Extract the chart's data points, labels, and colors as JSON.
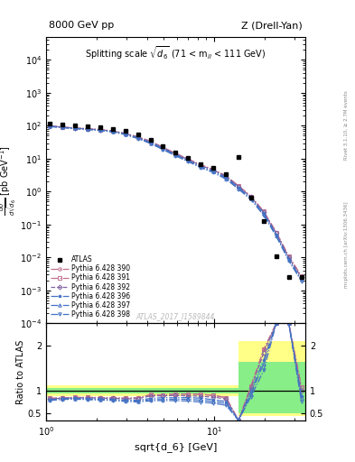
{
  "title_left": "8000 GeV pp",
  "title_right": "Z (Drell-Yan)",
  "panel_title": "Splitting scale $\\sqrt{d_6}$ (71 < m$_{ll}$ < 111 GeV)",
  "ylabel_main": "d$\\sigma$/dsqrt($d_6$) [pb,GeV$^{-1}$]",
  "ylabel_ratio": "Ratio to ATLAS",
  "xlabel": "sqrt{d_6} [GeV]",
  "watermark": "ATLAS_2017_I1589844",
  "right_label": "mcplots.cern.ch [arXiv:1306.3436]",
  "right_label2": "Rivet 3.1.10, ≥ 2.7M events",
  "atlas_x": [
    1.05,
    1.25,
    1.48,
    1.76,
    2.09,
    2.49,
    2.96,
    3.52,
    4.18,
    4.97,
    5.91,
    7.02,
    8.35,
    9.92,
    11.8,
    14.0,
    16.6,
    19.8,
    23.5,
    27.9,
    33.2
  ],
  "atlas_y": [
    120,
    108,
    100,
    95,
    90,
    82,
    70,
    54,
    37,
    24,
    15.5,
    10.5,
    7.0,
    5.2,
    3.5,
    11.0,
    0.65,
    0.13,
    0.011,
    0.0025,
    0.0025
  ],
  "mc_x": [
    1.05,
    1.25,
    1.48,
    1.76,
    2.09,
    2.49,
    2.96,
    3.52,
    4.18,
    4.97,
    5.91,
    7.02,
    8.35,
    9.92,
    11.8,
    14.0,
    16.6,
    19.8,
    23.5,
    27.9,
    33.2
  ],
  "py390_y": [
    100,
    92,
    86,
    82,
    77,
    70,
    59,
    46,
    34,
    22,
    14.5,
    9.8,
    6.5,
    4.7,
    3.0,
    1.5,
    0.72,
    0.25,
    0.058,
    0.011,
    0.0027
  ],
  "py391_y": [
    100,
    92,
    86,
    82,
    77,
    70,
    59,
    46,
    34,
    22,
    14.5,
    9.8,
    6.5,
    4.7,
    3.0,
    1.5,
    0.72,
    0.25,
    0.058,
    0.011,
    0.0027
  ],
  "py392_y": [
    99,
    91,
    85,
    81,
    76,
    69,
    58,
    45,
    33,
    21.5,
    14.0,
    9.4,
    6.2,
    4.5,
    2.9,
    1.45,
    0.69,
    0.24,
    0.055,
    0.01,
    0.0025
  ],
  "py396_y": [
    97,
    90,
    84,
    79,
    74,
    67,
    56,
    43,
    31,
    20.5,
    13.2,
    9.0,
    5.9,
    4.2,
    2.7,
    1.35,
    0.64,
    0.22,
    0.05,
    0.009,
    0.0022
  ],
  "py397_y": [
    96,
    89,
    83,
    78,
    73,
    66,
    55,
    42,
    30,
    19.5,
    12.7,
    8.6,
    5.6,
    4.0,
    2.55,
    1.28,
    0.61,
    0.21,
    0.047,
    0.0085,
    0.0021
  ],
  "py398_y": [
    95,
    88,
    82,
    77,
    72,
    65,
    54,
    41,
    29,
    19.0,
    12.2,
    8.2,
    5.3,
    3.8,
    2.4,
    1.2,
    0.57,
    0.19,
    0.044,
    0.008,
    0.0019
  ],
  "ratio_390": [
    0.84,
    0.85,
    0.86,
    0.86,
    0.856,
    0.854,
    0.843,
    0.852,
    0.919,
    0.917,
    0.935,
    0.933,
    0.929,
    0.904,
    0.857,
    0.136,
    1.108,
    1.923,
    5.27,
    4.4,
    1.08
  ],
  "ratio_391": [
    0.84,
    0.85,
    0.86,
    0.86,
    0.856,
    0.854,
    0.843,
    0.852,
    0.919,
    0.917,
    0.935,
    0.933,
    0.929,
    0.904,
    0.857,
    0.136,
    1.108,
    1.923,
    5.27,
    4.4,
    1.08
  ],
  "ratio_392": [
    0.825,
    0.843,
    0.85,
    0.853,
    0.844,
    0.841,
    0.829,
    0.833,
    0.892,
    0.896,
    0.903,
    0.895,
    0.886,
    0.865,
    0.829,
    0.132,
    1.062,
    1.846,
    5.0,
    4.0,
    1.0
  ],
  "ratio_396": [
    0.808,
    0.833,
    0.84,
    0.832,
    0.822,
    0.817,
    0.8,
    0.796,
    0.838,
    0.854,
    0.852,
    0.857,
    0.843,
    0.808,
    0.771,
    0.123,
    0.985,
    1.692,
    4.55,
    3.6,
    0.88
  ],
  "ratio_397": [
    0.8,
    0.824,
    0.83,
    0.821,
    0.811,
    0.805,
    0.786,
    0.778,
    0.811,
    0.813,
    0.819,
    0.819,
    0.8,
    0.769,
    0.729,
    0.116,
    0.938,
    1.615,
    4.27,
    3.4,
    0.84
  ],
  "ratio_398": [
    0.792,
    0.815,
    0.82,
    0.811,
    0.8,
    0.793,
    0.771,
    0.759,
    0.784,
    0.792,
    0.787,
    0.781,
    0.757,
    0.731,
    0.686,
    0.109,
    0.877,
    1.462,
    4.0,
    3.2,
    0.76
  ],
  "colors_390": "#c07090",
  "colors_391": "#c07090",
  "colors_392": "#8064a2",
  "colors_396": "#4472c4",
  "colors_397": "#4472c4",
  "colors_398": "#4472c4",
  "markers_390": "o",
  "markers_391": "s",
  "markers_392": "D",
  "markers_396": "*",
  "markers_397": "^",
  "markers_398": "v",
  "ls_390": "-.",
  "ls_391": "-.",
  "ls_392": "--",
  "ls_396": "-.",
  "ls_397": "-.",
  "ls_398": "-.",
  "label_390": "Pythia 6.428 390",
  "label_391": "Pythia 6.428 391",
  "label_392": "Pythia 6.428 392",
  "label_396": "Pythia 6.428 396",
  "label_397": "Pythia 6.428 397",
  "label_398": "Pythia 6.428 398",
  "xlim": [
    1.0,
    35.0
  ],
  "ylim_main": [
    0.0001,
    50000.0
  ],
  "ylim_ratio": [
    0.35,
    2.5
  ],
  "ratio_yticks": [
    0.5,
    1.0,
    2.0
  ],
  "band1_xlo": 1.0,
  "band1_xhi": 14.0,
  "band2_xlo": 14.0,
  "band2_xhi": 35.0,
  "yellow_lo1": 0.88,
  "yellow_hi1": 1.12,
  "yellow_lo2": 0.45,
  "yellow_hi2": 2.1,
  "green_lo1": 0.94,
  "green_hi1": 1.06,
  "green_lo2": 0.5,
  "green_hi2": 1.65
}
